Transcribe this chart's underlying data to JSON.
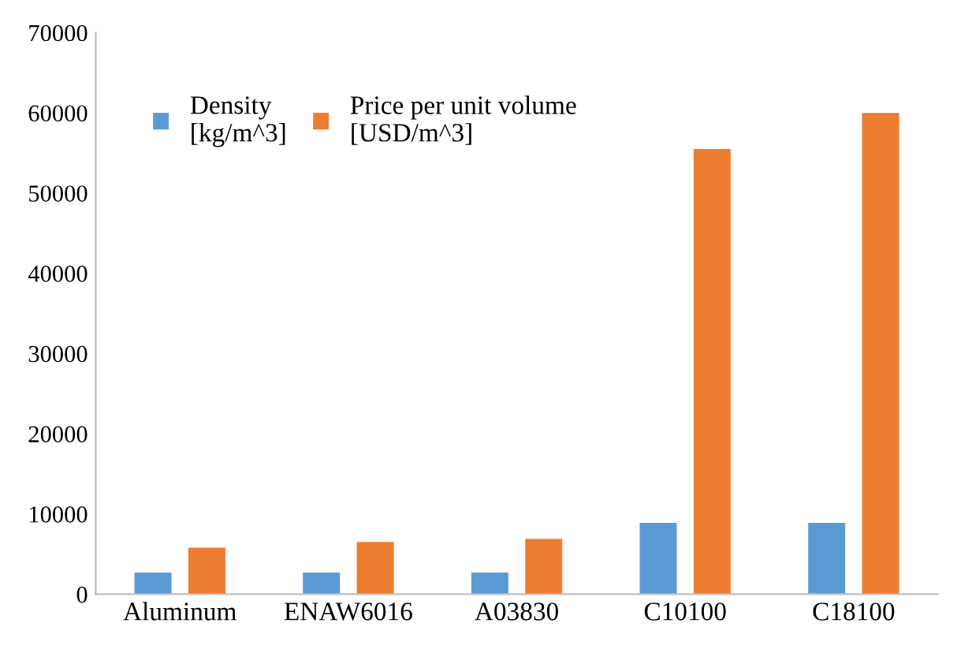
{
  "chart_data": {
    "type": "bar",
    "categories": [
      "Aluminum",
      "ENAW6016",
      "A03830",
      "C10100",
      "C18100"
    ],
    "series": [
      {
        "name": "Density\n[kg/m^3]",
        "color": "#5b9bd5",
        "values": [
          2700,
          2700,
          2700,
          8900,
          8900
        ]
      },
      {
        "name": "Price per unit volume\n[USD/m^3]",
        "color": "#ed7d31",
        "values": [
          5800,
          6500,
          6900,
          55500,
          60000
        ]
      }
    ],
    "ylim": [
      0,
      70000
    ],
    "yticks": [
      0,
      10000,
      20000,
      30000,
      40000,
      50000,
      60000,
      70000
    ],
    "grid": false,
    "legend": "top left"
  }
}
